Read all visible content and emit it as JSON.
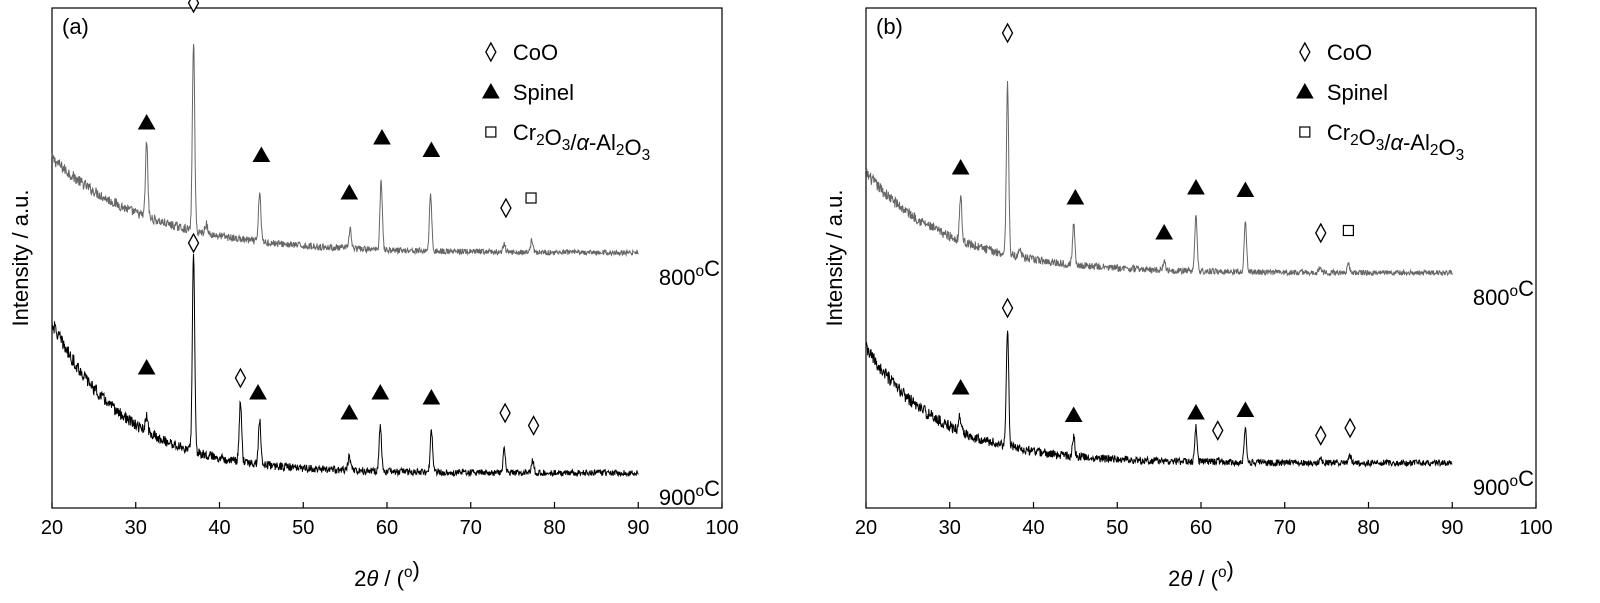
{
  "chart_data": [
    {
      "type": "line",
      "panel_label": "(a)",
      "xlabel": "2θ / (°)",
      "ylabel": "Intensity / a.u.",
      "xlim": [
        20,
        100
      ],
      "xticks": [
        20,
        30,
        40,
        50,
        60,
        70,
        80,
        90,
        100
      ],
      "ylim": [
        0,
        100
      ],
      "legend": {
        "position": "top-right",
        "entries": [
          {
            "marker": "diamond-open",
            "label": "CoO"
          },
          {
            "marker": "triangle-filled",
            "label": "Spinel"
          },
          {
            "marker": "square-open",
            "label": "Cr₂O₃/α-Al₂O₃"
          }
        ]
      },
      "series": [
        {
          "name": "800°C",
          "color": "#666666",
          "x_range": [
            20,
            90
          ],
          "baseline": {
            "start": 70,
            "end": 51,
            "decay": 6
          },
          "noise": 1.2,
          "peaks": [
            {
              "x": 31.3,
              "height": 15,
              "phase": "Spinel"
            },
            {
              "x": 36.9,
              "height": 38,
              "phase": "CoO"
            },
            {
              "x": 38.4,
              "height": 2,
              "phase": null
            },
            {
              "x": 44.8,
              "height": 10,
              "phase": "Spinel"
            },
            {
              "x": 55.6,
              "height": 4,
              "phase": "Spinel"
            },
            {
              "x": 59.3,
              "height": 14,
              "phase": "Spinel"
            },
            {
              "x": 65.2,
              "height": 11.5,
              "phase": "Spinel"
            },
            {
              "x": 74.0,
              "height": 1.5,
              "phase": "CoO"
            },
            {
              "x": 77.3,
              "height": 2.5,
              "phase": "Cr2O3/Al2O3"
            }
          ]
        },
        {
          "name": "900°C",
          "color": "#000000",
          "x_range": [
            20,
            90
          ],
          "baseline": {
            "start": 37,
            "end": 7,
            "decay": 8
          },
          "noise": 1.4,
          "peaks": [
            {
              "x": 31.3,
              "height": 3,
              "phase": "Spinel"
            },
            {
              "x": 36.9,
              "height": 40,
              "phase": "CoO"
            },
            {
              "x": 42.5,
              "height": 12,
              "phase": "CoO"
            },
            {
              "x": 44.8,
              "height": 9,
              "phase": "Spinel"
            },
            {
              "x": 55.5,
              "height": 3,
              "phase": "Spinel"
            },
            {
              "x": 59.2,
              "height": 9,
              "phase": "Spinel"
            },
            {
              "x": 65.3,
              "height": 8.5,
              "phase": "Spinel"
            },
            {
              "x": 74.0,
              "height": 5,
              "phase": "CoO"
            },
            {
              "x": 77.4,
              "height": 2.5,
              "phase": "CoO"
            }
          ]
        }
      ],
      "annotations": [
        {
          "series": 0,
          "marker": "triangle-filled",
          "x": 31.3,
          "y": 77
        },
        {
          "series": 0,
          "marker": "diamond-open",
          "x": 36.9,
          "y": 101
        },
        {
          "series": 0,
          "marker": "triangle-filled",
          "x": 45.0,
          "y": 70.5
        },
        {
          "series": 0,
          "marker": "triangle-filled",
          "x": 55.5,
          "y": 63
        },
        {
          "series": 0,
          "marker": "triangle-filled",
          "x": 59.4,
          "y": 74
        },
        {
          "series": 0,
          "marker": "triangle-filled",
          "x": 65.3,
          "y": 71.5
        },
        {
          "series": 0,
          "marker": "diamond-open",
          "x": 74.2,
          "y": 60
        },
        {
          "series": 0,
          "marker": "square-open",
          "x": 77.2,
          "y": 62
        },
        {
          "series": 1,
          "marker": "triangle-filled",
          "x": 31.3,
          "y": 28
        },
        {
          "series": 1,
          "marker": "diamond-open",
          "x": 36.9,
          "y": 53
        },
        {
          "series": 1,
          "marker": "diamond-open",
          "x": 42.5,
          "y": 26
        },
        {
          "series": 1,
          "marker": "triangle-filled",
          "x": 44.6,
          "y": 23
        },
        {
          "series": 1,
          "marker": "triangle-filled",
          "x": 55.5,
          "y": 19
        },
        {
          "series": 1,
          "marker": "triangle-filled",
          "x": 59.2,
          "y": 23
        },
        {
          "series": 1,
          "marker": "triangle-filled",
          "x": 65.3,
          "y": 22
        },
        {
          "series": 1,
          "marker": "diamond-open",
          "x": 74.1,
          "y": 19
        },
        {
          "series": 1,
          "marker": "diamond-open",
          "x": 77.5,
          "y": 16.5
        }
      ]
    },
    {
      "type": "line",
      "panel_label": "(b)",
      "xlabel": "2θ / (°)",
      "ylabel": "Intensity / a.u.",
      "xlim": [
        20,
        100
      ],
      "xticks": [
        20,
        30,
        40,
        50,
        60,
        70,
        80,
        90,
        100
      ],
      "ylim": [
        0,
        100
      ],
      "legend": {
        "position": "top-right",
        "entries": [
          {
            "marker": "diamond-open",
            "label": "CoO"
          },
          {
            "marker": "triangle-filled",
            "label": "Spinel"
          },
          {
            "marker": "square-open",
            "label": "Cr₂O₃/α-Al₂O₃"
          }
        ]
      },
      "series": [
        {
          "name": "800°C",
          "color": "#666666",
          "x_range": [
            20,
            90
          ],
          "baseline": {
            "start": 67,
            "end": 47,
            "decay": 7
          },
          "noise": 1.2,
          "peaks": [
            {
              "x": 31.3,
              "height": 9,
              "phase": "Spinel"
            },
            {
              "x": 36.9,
              "height": 34,
              "phase": "CoO"
            },
            {
              "x": 38.4,
              "height": 2,
              "phase": null
            },
            {
              "x": 44.8,
              "height": 8,
              "phase": "Spinel"
            },
            {
              "x": 55.6,
              "height": 2,
              "phase": "Spinel"
            },
            {
              "x": 59.4,
              "height": 11,
              "phase": "Spinel"
            },
            {
              "x": 65.3,
              "height": 10,
              "phase": "Spinel"
            },
            {
              "x": 74.2,
              "height": 1,
              "phase": "CoO"
            },
            {
              "x": 77.6,
              "height": 2,
              "phase": "Cr2O3/Al2O3"
            }
          ]
        },
        {
          "name": "900°C",
          "color": "#000000",
          "x_range": [
            20,
            90
          ],
          "baseline": {
            "start": 32,
            "end": 9,
            "decay": 8
          },
          "noise": 1.4,
          "peaks": [
            {
              "x": 31.2,
              "height": 3,
              "phase": "Spinel"
            },
            {
              "x": 36.9,
              "height": 24,
              "phase": "CoO"
            },
            {
              "x": 44.8,
              "height": 4,
              "phase": "Spinel"
            },
            {
              "x": 59.4,
              "height": 7,
              "phase": "Spinel"
            },
            {
              "x": 62.0,
              "height": 0.5,
              "phase": "CoO"
            },
            {
              "x": 65.3,
              "height": 7,
              "phase": "Spinel"
            },
            {
              "x": 74.3,
              "height": 1,
              "phase": "CoO"
            },
            {
              "x": 77.8,
              "height": 1.5,
              "phase": "CoO"
            }
          ]
        }
      ],
      "annotations": [
        {
          "series": 0,
          "marker": "triangle-filled",
          "x": 31.3,
          "y": 68
        },
        {
          "series": 0,
          "marker": "diamond-open",
          "x": 36.9,
          "y": 95
        },
        {
          "series": 0,
          "marker": "triangle-filled",
          "x": 45.0,
          "y": 62
        },
        {
          "series": 0,
          "marker": "triangle-filled",
          "x": 55.6,
          "y": 55
        },
        {
          "series": 0,
          "marker": "triangle-filled",
          "x": 59.4,
          "y": 64
        },
        {
          "series": 0,
          "marker": "triangle-filled",
          "x": 65.3,
          "y": 63.5
        },
        {
          "series": 0,
          "marker": "diamond-open",
          "x": 74.3,
          "y": 55
        },
        {
          "series": 0,
          "marker": "square-open",
          "x": 77.6,
          "y": 55.5
        },
        {
          "series": 1,
          "marker": "triangle-filled",
          "x": 31.3,
          "y": 24
        },
        {
          "series": 1,
          "marker": "diamond-open",
          "x": 36.9,
          "y": 40
        },
        {
          "series": 1,
          "marker": "triangle-filled",
          "x": 44.8,
          "y": 18.5
        },
        {
          "series": 1,
          "marker": "triangle-filled",
          "x": 59.4,
          "y": 19
        },
        {
          "series": 1,
          "marker": "diamond-open",
          "x": 62.0,
          "y": 15.5
        },
        {
          "series": 1,
          "marker": "triangle-filled",
          "x": 65.3,
          "y": 19.5
        },
        {
          "series": 1,
          "marker": "diamond-open",
          "x": 74.3,
          "y": 14.5
        },
        {
          "series": 1,
          "marker": "diamond-open",
          "x": 77.8,
          "y": 16
        }
      ]
    }
  ]
}
